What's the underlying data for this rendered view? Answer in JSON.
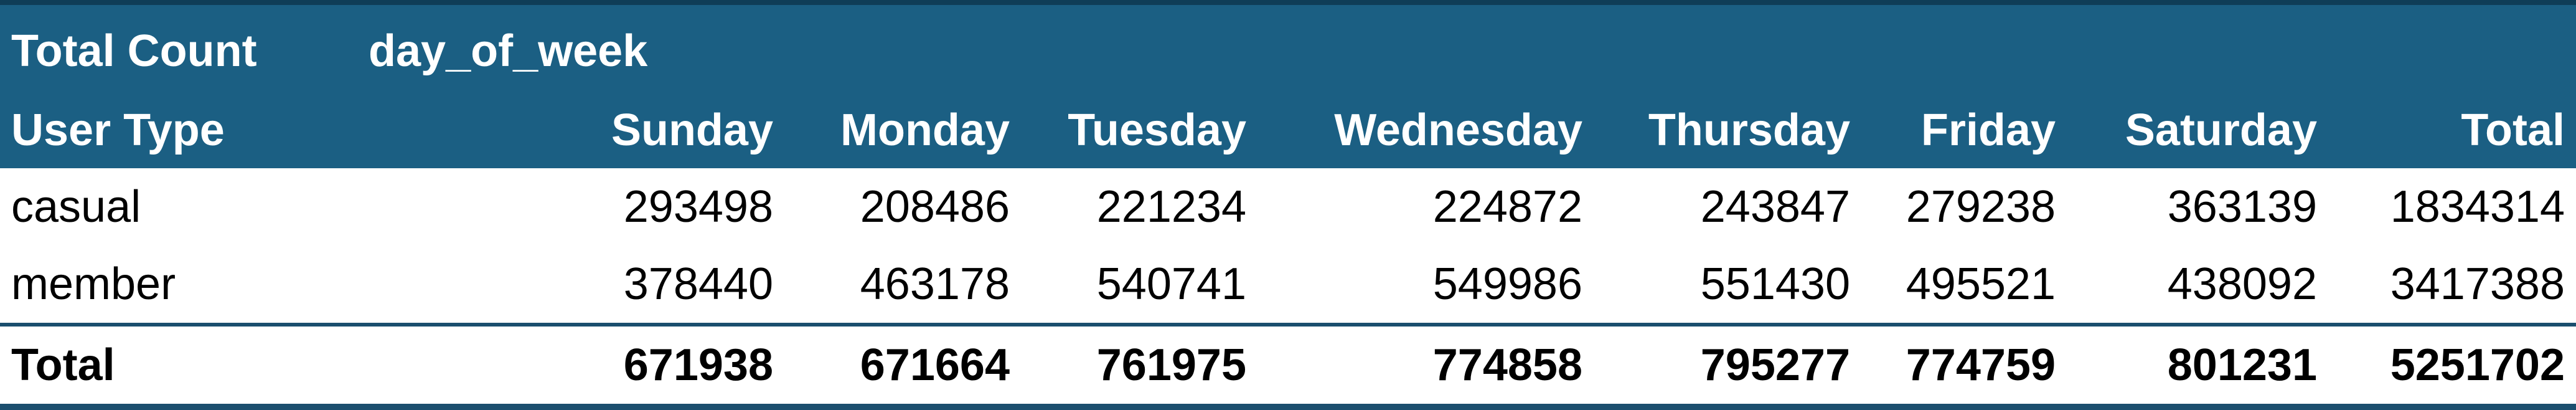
{
  "pivot": {
    "values_label": "Total Count",
    "column_field": "day_of_week",
    "row_field": "User Type",
    "columns": [
      "Sunday",
      "Monday",
      "Tuesday",
      "Wednesday",
      "Thursday",
      "Friday",
      "Saturday",
      "Total"
    ],
    "rows": [
      {
        "label": "casual",
        "values": [
          "293498",
          "208486",
          "221234",
          "224872",
          "243847",
          "279238",
          "363139",
          "1834314"
        ]
      },
      {
        "label": "member",
        "values": [
          "378440",
          "463178",
          "540741",
          "549986",
          "551430",
          "495521",
          "438092",
          "3417388"
        ]
      }
    ],
    "total": {
      "label": "Total",
      "values": [
        "671938",
        "671664",
        "761975",
        "774858",
        "795277",
        "774759",
        "801231",
        "5251702"
      ]
    },
    "colors": {
      "header_bg": "#1b5f83",
      "header_text": "#ffffff",
      "rule": "#1b4e6e"
    }
  }
}
